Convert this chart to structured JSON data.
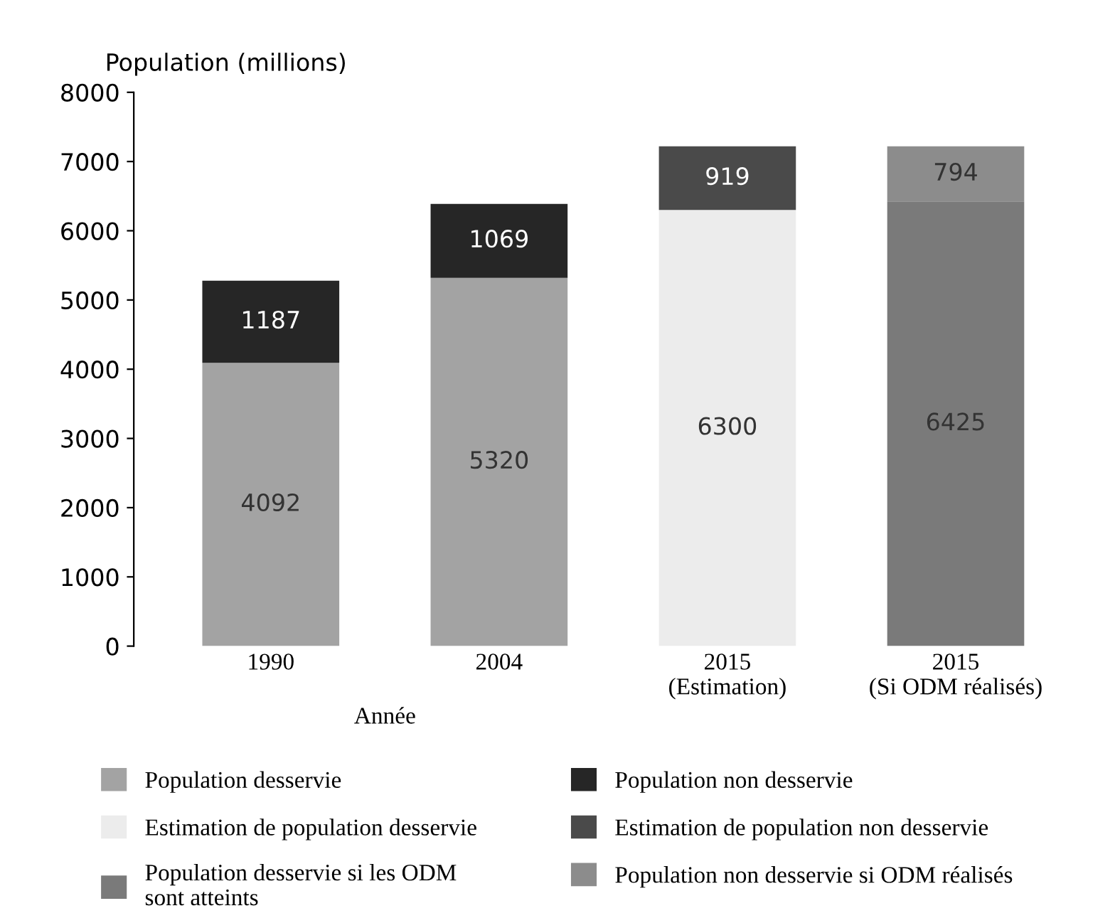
{
  "chart_data": {
    "type": "bar",
    "stacked": true,
    "ylabel": "Population (millions)",
    "xlabel": "Année",
    "categories": [
      "1990",
      "2004",
      "2015\n(Estimation)",
      "2015\n(Si ODM réalisés)"
    ],
    "series": [
      {
        "name": "Population desservie",
        "color": "#a3a3a3",
        "values": [
          4092,
          5320,
          null,
          null
        ]
      },
      {
        "name": "Population non desservie",
        "color": "#262626",
        "values": [
          1187,
          1069,
          null,
          null
        ]
      },
      {
        "name": "Estimation de population desservie",
        "color": "#ececec",
        "values": [
          null,
          null,
          6300,
          null
        ]
      },
      {
        "name": "Estimation de population non desservie",
        "color": "#4a4a4a",
        "values": [
          null,
          null,
          919,
          null
        ]
      },
      {
        "name": "Population desservie si les ODM sont atteints",
        "color": "#7a7a7a",
        "values": [
          null,
          null,
          null,
          6425
        ]
      },
      {
        "name": "Population non desservie si ODM réalisés",
        "color": "#8c8c8c",
        "values": [
          null,
          null,
          null,
          794
        ]
      }
    ],
    "ylim": [
      0,
      8000
    ],
    "yticks": [
      0,
      1000,
      2000,
      3000,
      4000,
      5000,
      6000,
      7000,
      8000
    ],
    "data_labels": true,
    "legend": "bottom",
    "grid": false
  }
}
